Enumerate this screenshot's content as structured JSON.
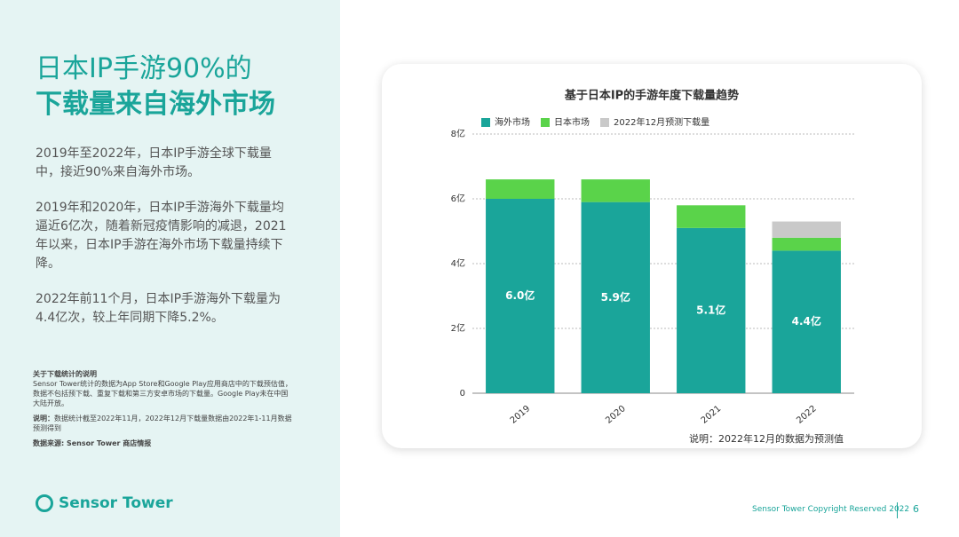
{
  "slide": {
    "title_line1": "日本IP手游90%的",
    "title_line2": "下载量来自海外市场",
    "paragraphs": [
      "2019年至2022年，日本IP手游全球下载量中，接近90%来自海外市场。",
      "2019年和2020年，日本IP手游海外下载量均逼近6亿次，随着新冠疫情影响的减退，2021年以来，日本IP手游在海外市场下载量持续下降。",
      "2022年前11个月，日本IP手游海外下载量为4.4亿次，较上年同期下降5.2%。"
    ],
    "notes": [
      {
        "heading": "关于下载统计的说明",
        "text": "Sensor Tower统计的数据为App Store和Google Play应用商店中的下载预估值，数据不包括预下载、重复下载和第三方安卓市场的下载量。Google Play未在中国大陆开放。"
      },
      {
        "heading": "说明：",
        "text": "数据统计截至2022年11月，2022年12月下载量数据由2022年1-11月数据预测得到"
      },
      {
        "heading": "数据来源: Sensor Tower 商店情报",
        "text": ""
      }
    ],
    "logo": "Sensor Tower",
    "copyright": "Sensor Tower Copyright Reserved 2022",
    "page_number": 6
  },
  "chart_data": {
    "type": "stacked_bar",
    "title": "基于日本IP的手游年度下载量趋势",
    "categories": [
      "2019",
      "2020",
      "2021",
      "2022"
    ],
    "series": [
      {
        "name": "海外市场",
        "color": "#1aa59a",
        "values": [
          6.0,
          5.9,
          5.1,
          4.4
        ],
        "value_labels": [
          "6.0亿",
          "5.9亿",
          "5.1亿",
          "4.4亿"
        ]
      },
      {
        "name": "日本市场",
        "color": "#5ad34a",
        "values": [
          0.6,
          0.7,
          0.7,
          0.4
        ]
      },
      {
        "name": "2022年12月预测下载量",
        "color": "#c9c9c9",
        "values": [
          0,
          0,
          0,
          0.5
        ]
      }
    ],
    "ylim": [
      0,
      8
    ],
    "yticks": [
      0,
      {
        "value": 2,
        "label": "2亿"
      },
      {
        "value": 4,
        "label": "4亿"
      },
      {
        "value": 6,
        "label": "6亿"
      },
      {
        "value": 8,
        "label": "8亿"
      }
    ],
    "grid": true,
    "legend": "top-left",
    "note": "说明：2022年12月的数据为预测值"
  }
}
